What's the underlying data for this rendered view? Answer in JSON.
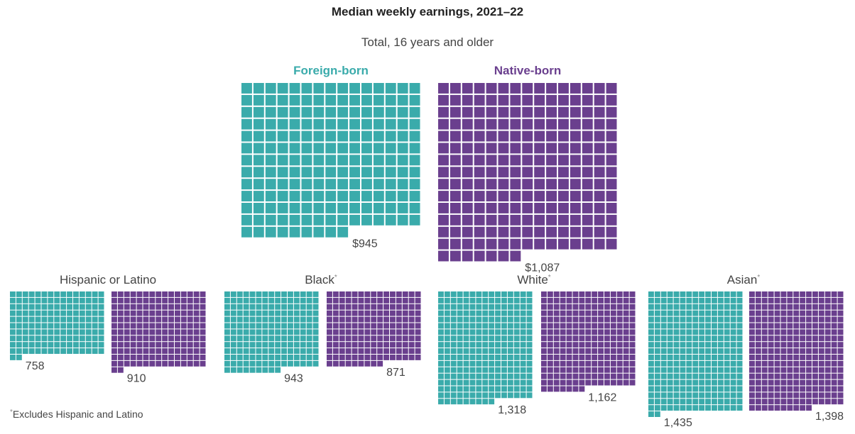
{
  "title": "Median weekly earnings, 2021–22",
  "colors": {
    "foreign": "#3aabab",
    "native": "#6a3f8e"
  },
  "chart_data": {
    "type": "waffle",
    "title": "Median weekly earnings, 2021–22",
    "unit_per_square": 5,
    "series": [
      "Foreign-born",
      "Native-born"
    ],
    "total": {
      "subtitle": "Total, 16 years and older",
      "foreign": {
        "name": "Foreign-born",
        "value": 945,
        "label": "$945"
      },
      "native": {
        "name": "Native-born",
        "value": 1087,
        "label": "$1,087"
      }
    },
    "groups": [
      {
        "label": "Hispanic or Latino",
        "marker": "",
        "foreign": {
          "value": 758,
          "label": "758"
        },
        "native": {
          "value": 910,
          "label": "910"
        }
      },
      {
        "label": "Black",
        "marker": "*",
        "foreign": {
          "value": 943,
          "label": "943"
        },
        "native": {
          "value": 871,
          "label": "871"
        }
      },
      {
        "label": "White",
        "marker": "*",
        "foreign": {
          "value": 1318,
          "label": "1,318"
        },
        "native": {
          "value": 1162,
          "label": "1,162"
        }
      },
      {
        "label": "Asian",
        "marker": "*",
        "foreign": {
          "value": 1435,
          "label": "1,435"
        },
        "native": {
          "value": 1398,
          "label": "1,398"
        }
      }
    ]
  },
  "footnote": {
    "marker": "*",
    "text": "Excludes Hispanic and Latino"
  }
}
